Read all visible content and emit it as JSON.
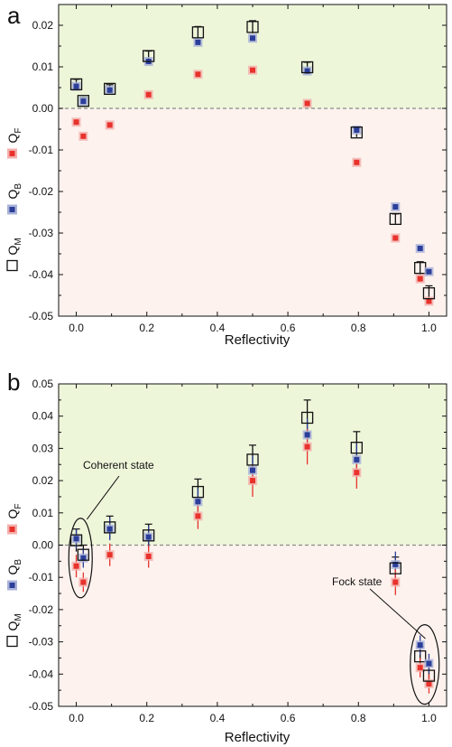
{
  "colors": {
    "positive_bg": "#eef6da",
    "negative_bg": "#fdf2ee",
    "QM": "#111111",
    "QB": "#2b3e9a",
    "QF": "#e8322c",
    "QB_halo": "#aab3d8",
    "QF_halo": "#f3b0ad",
    "zero_line": "#8a8a8a"
  },
  "legend": [
    {
      "key": "QM",
      "symbol": "open-square",
      "main": "Q",
      "sub": "M"
    },
    {
      "key": "QB",
      "symbol": "blue-square",
      "main": "Q",
      "sub": "B"
    },
    {
      "key": "QF",
      "symbol": "red-square",
      "main": "Q",
      "sub": "F"
    }
  ],
  "chart_data": [
    {
      "panel": "a",
      "type": "scatter",
      "xlabel": "Reflectivity",
      "ylabel": "",
      "xlim": [
        -0.05,
        1.05
      ],
      "ylim": [
        -0.05,
        0.025
      ],
      "xticks": [
        0.0,
        0.2,
        0.4,
        0.6,
        0.8,
        1.0
      ],
      "xtick_labels": [
        "0.0",
        "0.2",
        "0.4",
        "0.6",
        "0.8",
        "1.0"
      ],
      "yticks": [
        -0.05,
        -0.04,
        -0.03,
        -0.02,
        -0.01,
        0.0,
        0.01,
        0.02
      ],
      "ytick_labels": [
        "-0.05",
        "-0.04",
        "-0.03",
        "-0.02",
        "-0.01",
        "0.00",
        "0.01",
        "0.02"
      ],
      "zero_line": true,
      "x": [
        0.0,
        0.02,
        0.095,
        0.205,
        0.345,
        0.5,
        0.655,
        0.795,
        0.905,
        0.975,
        1.0
      ],
      "series": [
        {
          "name": "QM",
          "values": [
            0.0058,
            0.0018,
            0.0047,
            0.0126,
            0.0183,
            0.0196,
            0.0099,
            -0.0058,
            -0.0266,
            -0.0384,
            -0.0445
          ],
          "errors": [
            0.0012,
            0.0008,
            0.001,
            0.0012,
            0.0014,
            0.0015,
            0.0012,
            0.0011,
            0.0012,
            0.0015,
            0.0018
          ]
        },
        {
          "name": "QB",
          "values": [
            0.0053,
            0.0017,
            0.0044,
            0.0113,
            0.0159,
            0.0169,
            0.009,
            -0.0052,
            -0.0237,
            -0.0337,
            -0.0393
          ],
          "errors": [
            0.0005,
            0.0005,
            0.0005,
            0.0006,
            0.0006,
            0.0006,
            0.0005,
            0.0005,
            0.0005,
            0.0005,
            0.0005
          ]
        },
        {
          "name": "QF",
          "values": [
            -0.0033,
            -0.0067,
            -0.004,
            0.0033,
            0.0082,
            0.0092,
            0.0012,
            -0.013,
            -0.0312,
            -0.041,
            -0.0464
          ],
          "errors": [
            0.0005,
            0.0005,
            0.0005,
            0.0005,
            0.0005,
            0.0005,
            0.0005,
            0.0005,
            0.0005,
            0.0005,
            0.0005
          ]
        }
      ]
    },
    {
      "panel": "b",
      "type": "scatter",
      "xlabel": "Reflectivity",
      "ylabel": "",
      "xlim": [
        -0.05,
        1.05
      ],
      "ylim": [
        -0.05,
        0.05
      ],
      "xticks": [
        0.0,
        0.2,
        0.4,
        0.6,
        0.8,
        1.0
      ],
      "xtick_labels": [
        "0.0",
        "0.2",
        "0.4",
        "0.6",
        "0.8",
        "1.0"
      ],
      "yticks": [
        -0.05,
        -0.04,
        -0.03,
        -0.02,
        -0.01,
        0.0,
        0.01,
        0.02,
        0.03,
        0.04,
        0.05
      ],
      "ytick_labels": [
        "-0.05",
        "-0.04",
        "-0.03",
        "-0.02",
        "-0.01",
        "0.00",
        "0.01",
        "0.02",
        "0.03",
        "0.04",
        "0.05"
      ],
      "zero_line": true,
      "x": [
        0.0,
        0.02,
        0.095,
        0.205,
        0.345,
        0.5,
        0.655,
        0.795,
        0.905,
        0.975,
        1.0
      ],
      "series": [
        {
          "name": "QM",
          "values": [
            0.0015,
            -0.003,
            0.0055,
            0.003,
            0.0165,
            0.0265,
            0.0395,
            0.0302,
            -0.0072,
            -0.0345,
            -0.0405
          ],
          "errors": [
            0.0035,
            0.003,
            0.0035,
            0.0035,
            0.004,
            0.0045,
            0.0055,
            0.005,
            0.0035,
            0.003,
            0.003
          ]
        },
        {
          "name": "QB",
          "values": [
            0.002,
            -0.004,
            0.005,
            0.0025,
            0.0135,
            0.0232,
            0.0342,
            0.0265,
            -0.006,
            -0.031,
            -0.0367
          ],
          "errors": [
            0.003,
            0.003,
            0.0035,
            0.0035,
            0.004,
            0.0045,
            0.005,
            0.005,
            0.004,
            0.003,
            0.003
          ]
        },
        {
          "name": "QF",
          "values": [
            -0.0065,
            -0.0115,
            -0.003,
            -0.0035,
            0.009,
            0.02,
            0.0305,
            0.0225,
            -0.0115,
            -0.038,
            -0.043
          ],
          "errors": [
            0.0035,
            0.003,
            0.0035,
            0.0035,
            0.004,
            0.005,
            0.0055,
            0.005,
            0.004,
            0.003,
            0.003
          ]
        }
      ],
      "annotations": [
        {
          "text": "Coherent state",
          "target": "ellipse around R=0.0 to 0.02"
        },
        {
          "text": "Fock state",
          "target": "ellipse around R=0.975 to 1.0"
        }
      ]
    }
  ]
}
